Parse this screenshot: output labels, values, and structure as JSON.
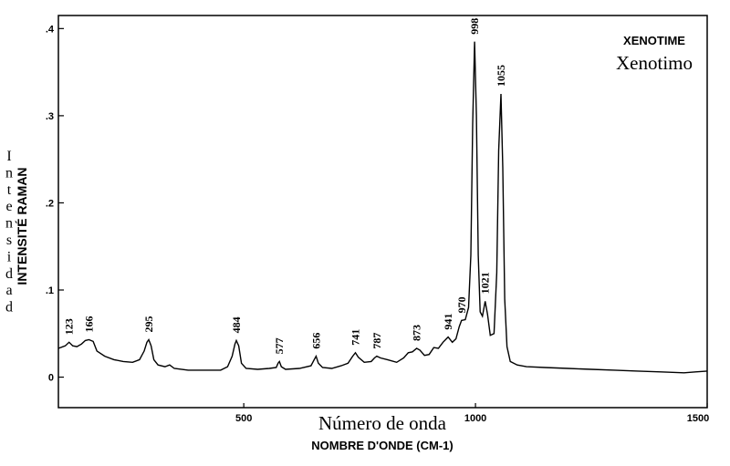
{
  "chart_data": {
    "type": "line",
    "title": "XENOTIME",
    "subtitle": "Xenotimo",
    "xlabel": "Número de onda",
    "xlabel_secondary": "NOMBRE D'ONDE (CM-1)",
    "ylabel": "Intensidad",
    "ylabel_secondary": "INTENSITÉ RAMAN",
    "xlim": [
      100,
      1500
    ],
    "ylim": [
      -0.035,
      0.415
    ],
    "x_ticks": [
      500,
      1000,
      1500
    ],
    "x_tick_labels": [
      "500",
      "1000",
      "1500"
    ],
    "y_ticks": [
      0,
      0.1,
      0.2,
      0.3,
      0.4
    ],
    "y_tick_labels": [
      "0",
      ".1",
      ".2",
      ".3",
      ".4"
    ],
    "grid": false,
    "legend": "none",
    "line_color": "#000000",
    "peaks": [
      {
        "label": "123",
        "x": 123,
        "y": 0.04
      },
      {
        "label": "166",
        "x": 166,
        "y": 0.043
      },
      {
        "label": "295",
        "x": 295,
        "y": 0.043
      },
      {
        "label": "484",
        "x": 484,
        "y": 0.042
      },
      {
        "label": "577",
        "x": 577,
        "y": 0.018
      },
      {
        "label": "656",
        "x": 656,
        "y": 0.024
      },
      {
        "label": "741",
        "x": 741,
        "y": 0.028
      },
      {
        "label": "787",
        "x": 787,
        "y": 0.024
      },
      {
        "label": "873",
        "x": 873,
        "y": 0.033
      },
      {
        "label": "941",
        "x": 941,
        "y": 0.046
      },
      {
        "label": "970",
        "x": 970,
        "y": 0.065
      },
      {
        "label": "998",
        "x": 998,
        "y": 0.385
      },
      {
        "label": "1021",
        "x": 1021,
        "y": 0.087
      },
      {
        "label": "1055",
        "x": 1055,
        "y": 0.325
      }
    ],
    "spectrum": [
      [
        100,
        0.033
      ],
      [
        115,
        0.036
      ],
      [
        123,
        0.04
      ],
      [
        131,
        0.036
      ],
      [
        140,
        0.035
      ],
      [
        150,
        0.038
      ],
      [
        158,
        0.042
      ],
      [
        166,
        0.043
      ],
      [
        175,
        0.041
      ],
      [
        183,
        0.03
      ],
      [
        200,
        0.024
      ],
      [
        220,
        0.02
      ],
      [
        240,
        0.018
      ],
      [
        260,
        0.017
      ],
      [
        275,
        0.02
      ],
      [
        285,
        0.03
      ],
      [
        291,
        0.04
      ],
      [
        295,
        0.043
      ],
      [
        300,
        0.036
      ],
      [
        306,
        0.02
      ],
      [
        315,
        0.014
      ],
      [
        330,
        0.012
      ],
      [
        340,
        0.014
      ],
      [
        350,
        0.01
      ],
      [
        380,
        0.008
      ],
      [
        420,
        0.008
      ],
      [
        450,
        0.008
      ],
      [
        465,
        0.012
      ],
      [
        475,
        0.024
      ],
      [
        481,
        0.038
      ],
      [
        484,
        0.042
      ],
      [
        489,
        0.036
      ],
      [
        495,
        0.016
      ],
      [
        505,
        0.01
      ],
      [
        530,
        0.009
      ],
      [
        555,
        0.01
      ],
      [
        570,
        0.011
      ],
      [
        574,
        0.016
      ],
      [
        577,
        0.018
      ],
      [
        581,
        0.012
      ],
      [
        590,
        0.009
      ],
      [
        620,
        0.01
      ],
      [
        645,
        0.013
      ],
      [
        652,
        0.02
      ],
      [
        656,
        0.024
      ],
      [
        661,
        0.016
      ],
      [
        670,
        0.011
      ],
      [
        690,
        0.01
      ],
      [
        710,
        0.013
      ],
      [
        725,
        0.016
      ],
      [
        735,
        0.024
      ],
      [
        741,
        0.028
      ],
      [
        747,
        0.023
      ],
      [
        760,
        0.017
      ],
      [
        775,
        0.018
      ],
      [
        782,
        0.022
      ],
      [
        787,
        0.024
      ],
      [
        795,
        0.022
      ],
      [
        810,
        0.02
      ],
      [
        830,
        0.017
      ],
      [
        845,
        0.022
      ],
      [
        855,
        0.028
      ],
      [
        864,
        0.029
      ],
      [
        873,
        0.033
      ],
      [
        880,
        0.031
      ],
      [
        890,
        0.025
      ],
      [
        900,
        0.026
      ],
      [
        910,
        0.034
      ],
      [
        920,
        0.033
      ],
      [
        930,
        0.04
      ],
      [
        941,
        0.046
      ],
      [
        950,
        0.04
      ],
      [
        958,
        0.044
      ],
      [
        965,
        0.058
      ],
      [
        970,
        0.065
      ],
      [
        978,
        0.066
      ],
      [
        985,
        0.08
      ],
      [
        990,
        0.14
      ],
      [
        994,
        0.29
      ],
      [
        998,
        0.385
      ],
      [
        1002,
        0.3
      ],
      [
        1006,
        0.14
      ],
      [
        1010,
        0.075
      ],
      [
        1015,
        0.07
      ],
      [
        1021,
        0.087
      ],
      [
        1026,
        0.072
      ],
      [
        1032,
        0.048
      ],
      [
        1040,
        0.05
      ],
      [
        1046,
        0.12
      ],
      [
        1050,
        0.26
      ],
      [
        1055,
        0.325
      ],
      [
        1059,
        0.24
      ],
      [
        1063,
        0.09
      ],
      [
        1068,
        0.035
      ],
      [
        1075,
        0.018
      ],
      [
        1090,
        0.014
      ],
      [
        1110,
        0.012
      ],
      [
        1150,
        0.011
      ],
      [
        1200,
        0.01
      ],
      [
        1250,
        0.009
      ],
      [
        1300,
        0.008
      ],
      [
        1350,
        0.007
      ],
      [
        1400,
        0.006
      ],
      [
        1450,
        0.005
      ],
      [
        1475,
        0.006
      ],
      [
        1500,
        0.007
      ]
    ]
  }
}
